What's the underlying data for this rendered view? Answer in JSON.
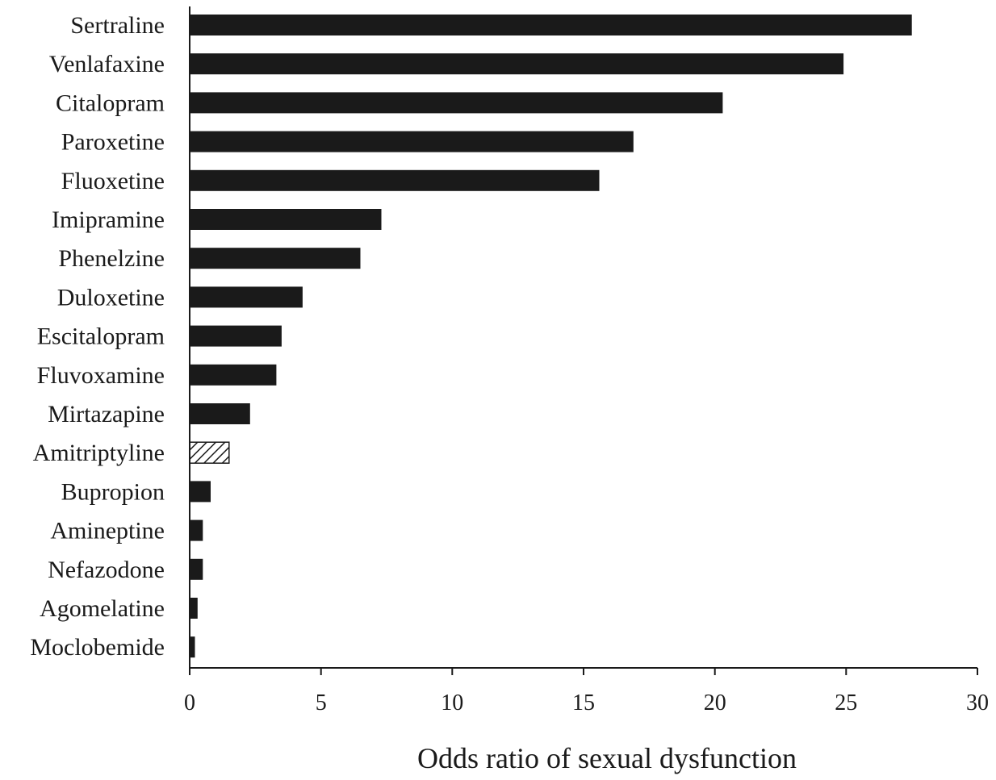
{
  "chart_data": {
    "type": "bar",
    "orientation": "horizontal",
    "title": "",
    "xlabel": "Odds ratio of sexual dysfunction",
    "ylabel": "",
    "xlim": [
      0,
      30
    ],
    "xticks": [
      0,
      5,
      10,
      15,
      20,
      25,
      30
    ],
    "grid": false,
    "categories": [
      "Sertraline",
      "Venlafaxine",
      "Citalopram",
      "Paroxetine",
      "Fluoxetine",
      "Imipramine",
      "Phenelzine",
      "Duloxetine",
      "Escitalopram",
      "Fluvoxamine",
      "Mirtazapine",
      "Amitriptyline",
      "Bupropion",
      "Amineptine",
      "Nefazodone",
      "Agomelatine",
      "Moclobemide"
    ],
    "values": [
      27.5,
      24.9,
      20.3,
      16.9,
      15.6,
      7.3,
      6.5,
      4.3,
      3.5,
      3.3,
      2.3,
      1.5,
      0.8,
      0.5,
      0.5,
      0.3,
      0.2
    ],
    "bar_styles": [
      "solid",
      "solid",
      "solid",
      "solid",
      "solid",
      "solid",
      "solid",
      "solid",
      "solid",
      "solid",
      "solid",
      "hatched",
      "solid",
      "solid",
      "solid",
      "solid",
      "solid"
    ],
    "colors": {
      "bar": "#1a1a1a",
      "hatch": "#1a1a1a",
      "axis": "#1a1a1a"
    }
  }
}
